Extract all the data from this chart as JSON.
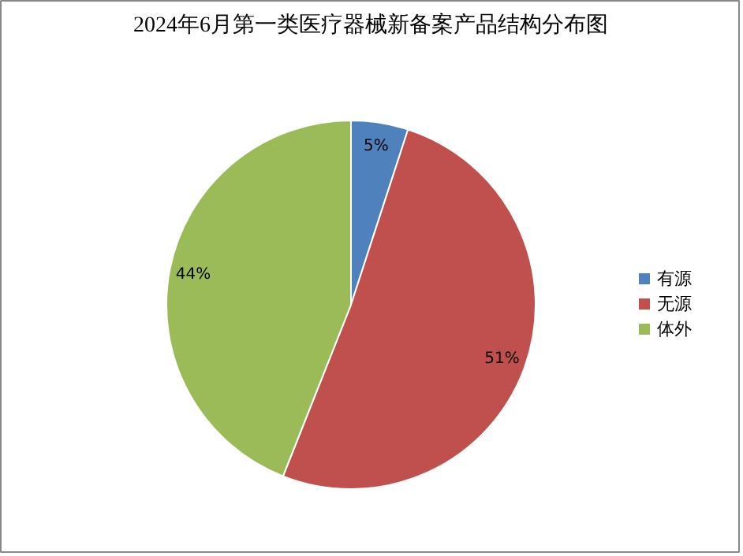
{
  "chart_data": {
    "type": "pie",
    "title": "2024年6月第一类医疗器械新备案产品结构分布图",
    "categories": [
      "有源",
      "无源",
      "体外"
    ],
    "values": [
      5,
      51,
      44
    ],
    "colors": [
      "#4f81bd",
      "#c0504d",
      "#9bbb59"
    ],
    "value_labels": [
      "5%",
      "51%",
      "44%"
    ],
    "legend": "right"
  }
}
